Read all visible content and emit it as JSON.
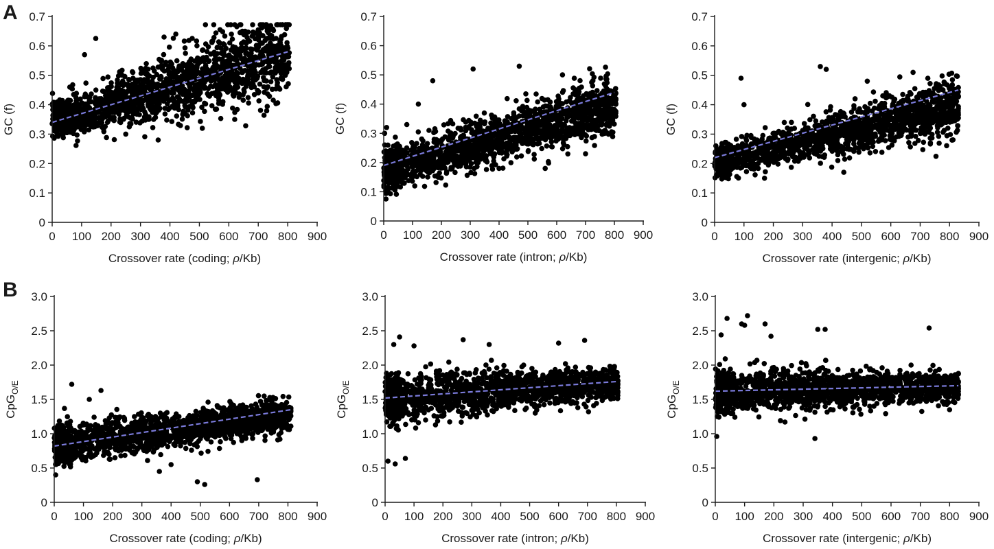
{
  "panel_letters": [
    "A",
    "B"
  ],
  "colors": {
    "points": "#000000",
    "trend_line": "#7b7bdb",
    "axes": "#1a1a1a"
  },
  "chart_data": [
    {
      "type": "scatter",
      "panel": "A",
      "xlabel_parts": [
        "Crossover rate (coding; ",
        "ρ",
        "/Kb)"
      ],
      "ylabel": "GC (f)",
      "xlim": [
        0,
        900
      ],
      "ylim": [
        0,
        0.7
      ],
      "xticks": [
        0,
        100,
        200,
        300,
        400,
        500,
        600,
        700,
        800,
        900
      ],
      "yticks": [
        0,
        0.1,
        0.2,
        0.3,
        0.4,
        0.5,
        0.6,
        0.7
      ],
      "yticklabels": [
        "0",
        "0.1",
        "0.2",
        "0.3",
        "0.4",
        "0.5",
        "0.6",
        "0.7"
      ],
      "trend": {
        "x": [
          0,
          800
        ],
        "y": [
          0.34,
          0.58
        ]
      },
      "cloud": {
        "x_max": 805,
        "y_start": 0.34,
        "y_end": 0.58,
        "spread_start": 0.035,
        "spread_end": 0.09
      },
      "outliers": {
        "x": [
          148,
          110,
          360,
          420,
          510,
          620,
          700,
          570,
          60,
          250,
          380
        ],
        "y": [
          0.625,
          0.57,
          0.28,
          0.64,
          0.32,
          0.35,
          0.44,
          0.655,
          0.46,
          0.3,
          0.63
        ]
      }
    },
    {
      "type": "scatter",
      "panel": "A",
      "xlabel_parts": [
        "Crossover rate (intron; ",
        "ρ",
        "/Kb)"
      ],
      "ylabel": "GC (f)",
      "xlim": [
        0,
        900
      ],
      "ylim": [
        0,
        0.7
      ],
      "xticks": [
        0,
        100,
        200,
        300,
        400,
        500,
        600,
        700,
        800,
        900
      ],
      "yticks": [
        0,
        0.1,
        0.2,
        0.3,
        0.4,
        0.5,
        0.6,
        0.7
      ],
      "yticklabels": [
        "0",
        "0.1",
        "0.2",
        "0.3",
        "0.4",
        "0.5",
        "0.6",
        "0.7"
      ],
      "trend": {
        "x": [
          0,
          800
        ],
        "y": [
          0.19,
          0.44
        ]
      },
      "cloud": {
        "x_max": 805,
        "y_start": 0.17,
        "y_end": 0.4,
        "spread_start": 0.04,
        "spread_end": 0.06
      },
      "outliers": {
        "x": [
          470,
          310,
          170,
          620,
          10,
          400,
          560,
          700,
          120,
          80
        ],
        "y": [
          0.53,
          0.52,
          0.48,
          0.5,
          0.32,
          0.18,
          0.18,
          0.23,
          0.4,
          0.33
        ]
      }
    },
    {
      "type": "scatter",
      "panel": "A",
      "xlabel_parts": [
        "Crossover rate (intergenic; ",
        "ρ",
        "/Kb)"
      ],
      "ylabel": "GC (f)",
      "xlim": [
        0,
        900
      ],
      "ylim": [
        0,
        0.7
      ],
      "xticks": [
        0,
        100,
        200,
        300,
        400,
        500,
        600,
        700,
        800,
        900
      ],
      "yticks": [
        0,
        0.1,
        0.2,
        0.3,
        0.4,
        0.5,
        0.6,
        0.7
      ],
      "yticklabels": [
        "0",
        "0.1",
        "0.2",
        "0.3",
        "0.4",
        "0.5",
        "0.6",
        "0.7"
      ],
      "trend": {
        "x": [
          0,
          830
        ],
        "y": [
          0.22,
          0.45
        ]
      },
      "cloud": {
        "x_max": 830,
        "y_start": 0.2,
        "y_end": 0.4,
        "spread_start": 0.03,
        "spread_end": 0.06
      },
      "outliers": {
        "x": [
          90,
          360,
          380,
          170,
          440,
          735,
          825,
          520,
          100
        ],
        "y": [
          0.49,
          0.53,
          0.52,
          0.15,
          0.17,
          0.27,
          0.35,
          0.48,
          0.4
        ]
      }
    },
    {
      "type": "scatter",
      "panel": "B",
      "xlabel_parts": [
        "Crossover rate (coding; ",
        "ρ",
        "/Kb)"
      ],
      "ylabel": "CpG",
      "ylabel_sub": "O/E",
      "xlim": [
        0,
        900
      ],
      "ylim": [
        0,
        3.0
      ],
      "xticks": [
        0,
        100,
        200,
        300,
        400,
        500,
        600,
        700,
        800,
        900
      ],
      "yticks": [
        0,
        0.5,
        1.0,
        1.5,
        2.0,
        2.5,
        3.0
      ],
      "yticklabels": [
        "0",
        "0.5",
        "1.0",
        "1.5",
        "2.0",
        "2.5",
        "3.0"
      ],
      "trend": {
        "x": [
          0,
          810
        ],
        "y": [
          0.82,
          1.35
        ]
      },
      "cloud": {
        "x_max": 810,
        "y_start": 0.82,
        "y_end": 1.28,
        "spread_start": 0.17,
        "spread_end": 0.14
      },
      "outliers": {
        "x": [
          60,
          160,
          490,
          515,
          695,
          360,
          120,
          5,
          400
        ],
        "y": [
          1.72,
          1.63,
          0.3,
          0.26,
          0.33,
          0.45,
          1.5,
          0.4,
          0.55
        ]
      }
    },
    {
      "type": "scatter",
      "panel": "B",
      "xlabel_parts": [
        "Crossover rate (intron; ",
        "ρ",
        "/Kb)"
      ],
      "ylabel": "CpG",
      "ylabel_sub": "O/E",
      "xlim": [
        0,
        900
      ],
      "ylim": [
        0,
        3.0
      ],
      "xticks": [
        0,
        100,
        200,
        300,
        400,
        500,
        600,
        700,
        800,
        900
      ],
      "yticks": [
        0,
        0.5,
        1.0,
        1.5,
        2.0,
        2.5,
        3.0
      ],
      "yticklabels": [
        "0",
        "0.5",
        "1.0",
        "1.5",
        "2.0",
        "2.5",
        "3.0"
      ],
      "trend": {
        "x": [
          0,
          800
        ],
        "y": [
          1.52,
          1.76
        ]
      },
      "cloud": {
        "x_max": 805,
        "y_start": 1.52,
        "y_end": 1.73,
        "spread_start": 0.22,
        "spread_end": 0.12
      },
      "outliers": {
        "x": [
          50,
          30,
          100,
          70,
          10,
          35,
          270,
          360,
          690,
          600,
          610
        ],
        "y": [
          2.41,
          2.3,
          2.28,
          0.64,
          0.6,
          0.56,
          2.37,
          2.3,
          2.36,
          2.32,
          1.6
        ]
      }
    },
    {
      "type": "scatter",
      "panel": "B",
      "xlabel_parts": [
        "Crossover rate (intergenic; ",
        "ρ",
        "/Kb)"
      ],
      "ylabel": "CpG",
      "ylabel_sub": "O/E",
      "xlim": [
        0,
        900
      ],
      "ylim": [
        0,
        3.0
      ],
      "xticks": [
        0,
        100,
        200,
        300,
        400,
        500,
        600,
        700,
        800,
        900
      ],
      "yticks": [
        0,
        0.5,
        1.0,
        1.5,
        2.0,
        2.5,
        3.0
      ],
      "yticklabels": [
        "0",
        "0.5",
        "1.0",
        "1.5",
        "2.0",
        "2.5",
        "3.0"
      ],
      "trend": {
        "x": [
          0,
          830
        ],
        "y": [
          1.62,
          1.7
        ]
      },
      "cloud": {
        "x_max": 830,
        "y_start": 1.62,
        "y_end": 1.68,
        "spread_start": 0.2,
        "spread_end": 0.12
      },
      "outliers": {
        "x": [
          40,
          100,
          90,
          110,
          170,
          350,
          375,
          730,
          340,
          5,
          800,
          190,
          20
        ],
        "y": [
          2.68,
          2.58,
          2.6,
          2.72,
          2.6,
          2.52,
          2.52,
          2.54,
          0.93,
          0.96,
          1.35,
          2.42,
          2.44
        ]
      }
    }
  ]
}
